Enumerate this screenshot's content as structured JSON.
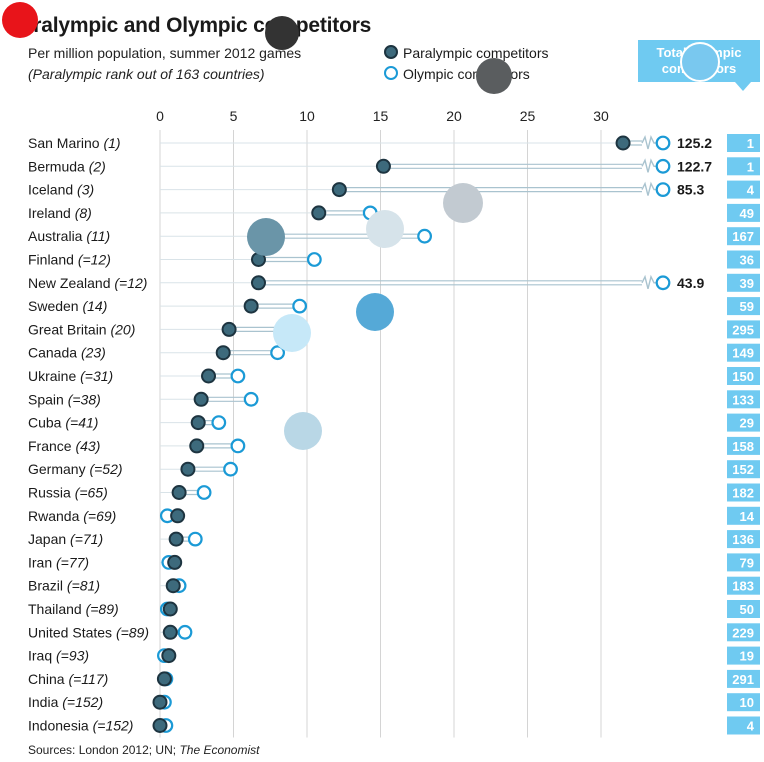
{
  "title": "Paralympic and Olympic competitors",
  "subtitle": "Per million population, summer 2012 games",
  "note": "(Paralympic rank out of 163 countries)",
  "legend": {
    "paralympic": "Paralympic competitors",
    "olympic": "Olympic competitors"
  },
  "total_header": {
    "line1": "Total Olympic",
    "line2": "competitors"
  },
  "source": {
    "prefix": "Sources: London 2012; UN; ",
    "publisher": "The Economist"
  },
  "colors": {
    "paralympic_fill": "#3d6a7c",
    "paralympic_stroke": "#1d3440",
    "olympic_stroke": "#1b9ad6",
    "connector": "#a9c3cf",
    "grid": "#d4d4d4",
    "total_box": "#6fcaf1",
    "marker_red": "#e8141a"
  },
  "chart_data": {
    "type": "scatter",
    "title": "Paralympic and Olympic competitors",
    "subtitle": "Per million population, summer 2012 games",
    "xlim": [
      0,
      30
    ],
    "x_ticks": [
      0,
      5,
      10,
      15,
      20,
      25,
      30
    ],
    "grid": true,
    "legend_position": "top-right",
    "series": [
      {
        "name": "Paralympic competitors",
        "values": [
          31.5,
          15.2,
          12.2,
          10.8,
          7.4,
          6.7,
          6.7,
          6.2,
          4.7,
          4.3,
          3.3,
          2.8,
          2.6,
          2.5,
          1.9,
          1.3,
          1.2,
          1.1,
          1.0,
          0.9,
          0.7,
          0.7,
          0.6,
          0.3,
          0.0,
          0.0
        ]
      },
      {
        "name": "Olympic competitors",
        "values": [
          125.2,
          122.7,
          85.3,
          14.3,
          18.0,
          10.5,
          43.9,
          9.5,
          8.8,
          8.0,
          5.3,
          6.2,
          4.0,
          5.3,
          4.8,
          3.0,
          0.5,
          2.4,
          0.6,
          1.3,
          0.5,
          1.7,
          0.3,
          0.4,
          0.3,
          0.4
        ]
      }
    ],
    "broken_axis_labels": [
      {
        "country": "San Marino",
        "olympic": "125.2"
      },
      {
        "country": "Bermuda",
        "olympic": "122.7"
      },
      {
        "country": "Iceland",
        "olympic": "85.3"
      },
      {
        "country": "New Zealand",
        "olympic": "43.9"
      }
    ],
    "rows": [
      {
        "country": "San Marino",
        "rank": "(1)",
        "total": "1"
      },
      {
        "country": "Bermuda",
        "rank": "(2)",
        "total": "1"
      },
      {
        "country": "Iceland",
        "rank": "(3)",
        "total": "4"
      },
      {
        "country": "Ireland",
        "rank": "(8)",
        "total": "49"
      },
      {
        "country": "Australia",
        "rank": "(11)",
        "total": "167"
      },
      {
        "country": "Finland",
        "rank": "(=12)",
        "total": "36"
      },
      {
        "country": "New Zealand",
        "rank": "(=12)",
        "total": "39"
      },
      {
        "country": "Sweden",
        "rank": "(14)",
        "total": "59"
      },
      {
        "country": "Great Britain",
        "rank": "(20)",
        "total": "295"
      },
      {
        "country": "Canada",
        "rank": "(23)",
        "total": "149"
      },
      {
        "country": "Ukraine",
        "rank": "(=31)",
        "total": "150"
      },
      {
        "country": "Spain",
        "rank": "(=38)",
        "total": "133"
      },
      {
        "country": "Cuba",
        "rank": "(=41)",
        "total": "29"
      },
      {
        "country": "France",
        "rank": "(43)",
        "total": "158"
      },
      {
        "country": "Germany",
        "rank": "(=52)",
        "total": "152"
      },
      {
        "country": "Russia",
        "rank": "(=65)",
        "total": "182"
      },
      {
        "country": "Rwanda",
        "rank": "(=69)",
        "total": "14"
      },
      {
        "country": "Japan",
        "rank": "(=71)",
        "total": "136"
      },
      {
        "country": "Iran",
        "rank": "(=77)",
        "total": "79"
      },
      {
        "country": "Brazil",
        "rank": "(=81)",
        "total": "183"
      },
      {
        "country": "Thailand",
        "rank": "(=89)",
        "total": "50"
      },
      {
        "country": "United States",
        "rank": "(=89)",
        "total": "229"
      },
      {
        "country": "Iraq",
        "rank": "(=93)",
        "total": "19"
      },
      {
        "country": "China",
        "rank": "(=117)",
        "total": "291"
      },
      {
        "country": "India",
        "rank": "(=152)",
        "total": "10"
      },
      {
        "country": "Indonesia",
        "rank": "(=152)",
        "total": "4"
      }
    ]
  }
}
